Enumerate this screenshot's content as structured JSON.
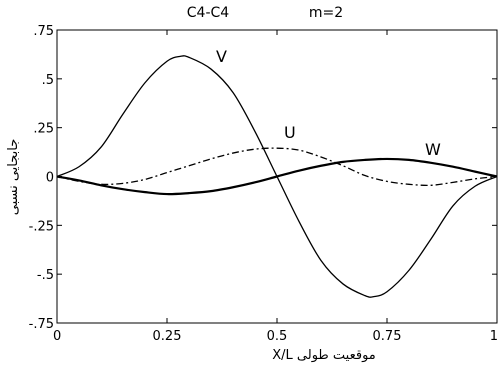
{
  "chart_data": {
    "type": "line",
    "title_left": "C4-C4",
    "title_right": "m=2",
    "xlabel": "موقعیت طولی  X/L",
    "ylabel": "جابجایی نسبی",
    "xlim": [
      0,
      1
    ],
    "ylim": [
      -0.75,
      0.75
    ],
    "grid": false,
    "xticks": [
      {
        "v": 0,
        "label": "0"
      },
      {
        "v": 0.25,
        "label": "0.25"
      },
      {
        "v": 0.5,
        "label": "0.5"
      },
      {
        "v": 0.75,
        "label": "0.75"
      },
      {
        "v": 1,
        "label": "1"
      }
    ],
    "yticks": [
      {
        "v": 0.75,
        "label": ".75"
      },
      {
        "v": 0.5,
        "label": ".5"
      },
      {
        "v": 0.25,
        "label": ".25"
      },
      {
        "v": 0,
        "label": "0"
      },
      {
        "v": -0.25,
        "label": "-.25"
      },
      {
        "v": -0.5,
        "label": "-.5"
      },
      {
        "v": -0.75,
        "label": "-.75"
      }
    ],
    "series": [
      {
        "name": "V",
        "style": "solid",
        "x": [
          0,
          0.05,
          0.1,
          0.15,
          0.2,
          0.25,
          0.28,
          0.3,
          0.35,
          0.4,
          0.45,
          0.5,
          0.55,
          0.6,
          0.65,
          0.7,
          0.72,
          0.75,
          0.8,
          0.85,
          0.9,
          0.95,
          1
        ],
        "y": [
          0,
          0.05,
          0.15,
          0.32,
          0.48,
          0.59,
          0.615,
          0.61,
          0.55,
          0.43,
          0.23,
          0,
          -0.23,
          -0.43,
          -0.55,
          -0.61,
          -0.615,
          -0.59,
          -0.48,
          -0.32,
          -0.15,
          -0.05,
          0
        ]
      },
      {
        "name": "U",
        "style": "dashdot",
        "x": [
          0,
          0.05,
          0.1,
          0.15,
          0.2,
          0.25,
          0.3,
          0.35,
          0.4,
          0.45,
          0.5,
          0.55,
          0.6,
          0.65,
          0.7,
          0.75,
          0.8,
          0.85,
          0.9,
          0.95,
          1
        ],
        "y": [
          0,
          -0.025,
          -0.04,
          -0.035,
          -0.015,
          0.02,
          0.055,
          0.09,
          0.12,
          0.14,
          0.145,
          0.135,
          0.1,
          0.055,
          0.005,
          -0.025,
          -0.04,
          -0.045,
          -0.03,
          -0.012,
          0
        ]
      },
      {
        "name": "W",
        "style": "solid-thick",
        "x": [
          0,
          0.05,
          0.1,
          0.15,
          0.2,
          0.25,
          0.3,
          0.35,
          0.4,
          0.45,
          0.5,
          0.55,
          0.6,
          0.65,
          0.7,
          0.75,
          0.8,
          0.85,
          0.9,
          0.95,
          1
        ],
        "y": [
          0,
          -0.02,
          -0.045,
          -0.065,
          -0.08,
          -0.09,
          -0.085,
          -0.075,
          -0.055,
          -0.03,
          0,
          0.03,
          0.055,
          0.075,
          0.085,
          0.09,
          0.085,
          0.07,
          0.05,
          0.025,
          0
        ]
      }
    ]
  }
}
